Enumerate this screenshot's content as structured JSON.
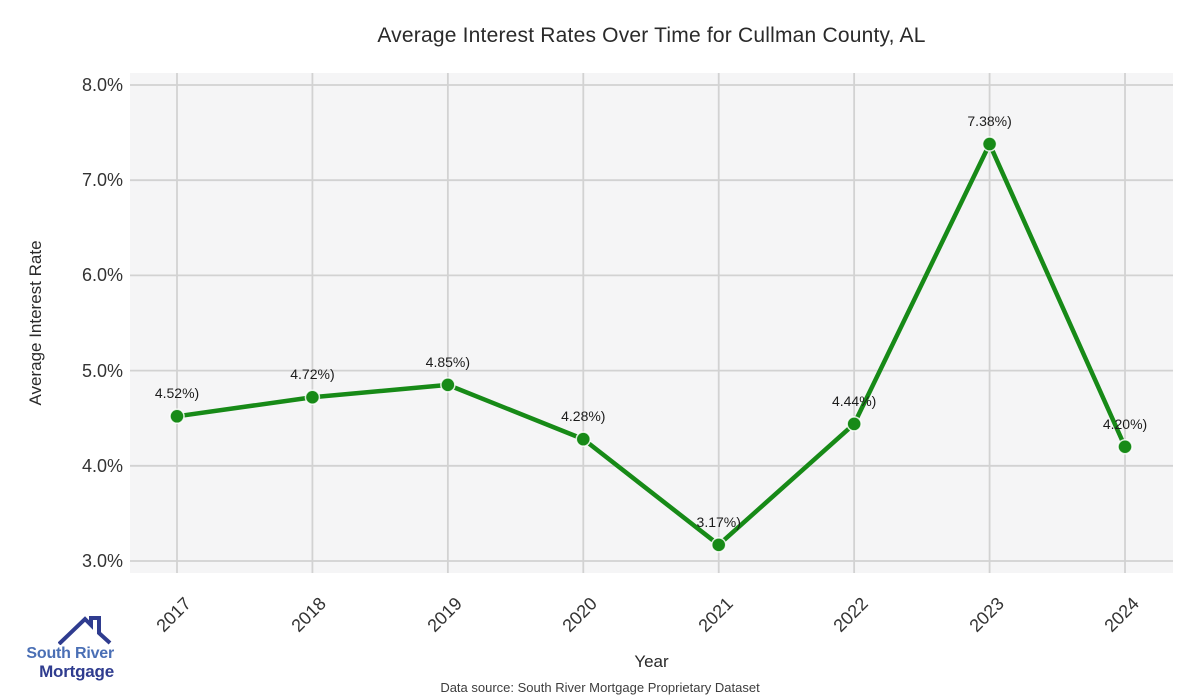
{
  "chart_data": {
    "type": "line",
    "title": "Average Interest Rates Over Time for Cullman County, AL",
    "xlabel": "Year",
    "ylabel": "Average Interest Rate",
    "categories": [
      "2017",
      "2018",
      "2019",
      "2020",
      "2021",
      "2022",
      "2023",
      "2024"
    ],
    "values": [
      4.52,
      4.72,
      4.85,
      4.28,
      3.17,
      4.44,
      7.38,
      4.2
    ],
    "point_labels": [
      "4.52%)",
      "4.72%)",
      "4.85%)",
      "4.28%)",
      "3.17%)",
      "4.44%)",
      "7.38%)",
      "4.20%)"
    ],
    "y_tick_labels": [
      "8.0%",
      "7.0%",
      "6.0%",
      "5.0%",
      "4.0%",
      "3.0%"
    ],
    "y_tick_values": [
      8.0,
      7.0,
      6.0,
      5.0,
      4.0,
      3.0
    ],
    "ylim": [
      2.87,
      8.13
    ],
    "grid": true,
    "legend": "none",
    "colors": {
      "line": "#178a17",
      "marker": "#178a17",
      "marker_edge": "#ffffff",
      "plot_background": "#f5f5f6",
      "gridline": "#d2d2d2",
      "text": "#2a2a2a"
    }
  },
  "footer": {
    "source": "Data source: South River Mortgage Proprietary Dataset"
  },
  "logo": {
    "icon": "house-roof-icon",
    "line1": "South River",
    "line2": "Mortgage",
    "color_line1": "#4a6fb5",
    "color_line2": "#2f3c8f"
  }
}
